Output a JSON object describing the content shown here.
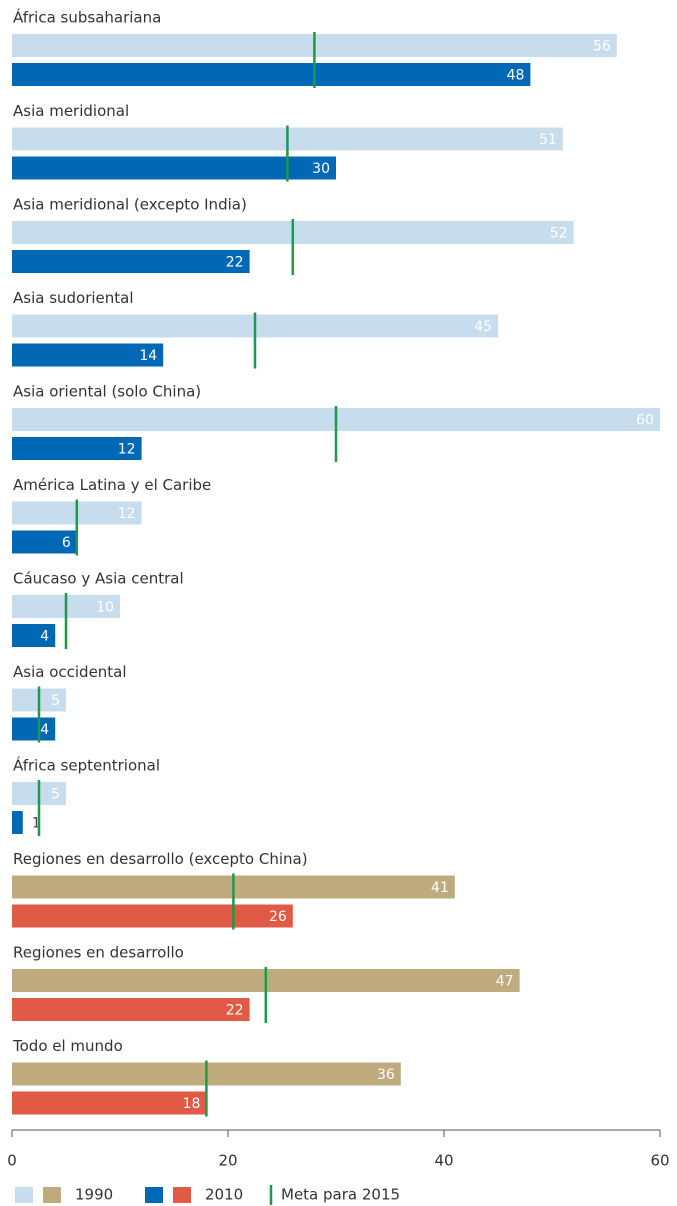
{
  "chart_data": {
    "type": "bar",
    "orientation": "horizontal",
    "categories": [
      "África subsahariana",
      "Asia meridional",
      "Asia meridional (excepto India)",
      "Asia sudoriental",
      "Asia oriental (solo China)",
      "América Latina y el Caribe",
      "Cáucaso y Asia central",
      "Asia occidental",
      "África septentrional",
      "Regiones en desarrollo (excepto China)",
      "Regiones en desarrollo",
      "Todo el mundo"
    ],
    "series": [
      {
        "name": "1990",
        "values": [
          56,
          51,
          52,
          45,
          60,
          12,
          10,
          5,
          5,
          41,
          47,
          36
        ],
        "colors": [
          "#c7dcec",
          "#c7dcec",
          "#c7dcec",
          "#c7dcec",
          "#c7dcec",
          "#c7dcec",
          "#c7dcec",
          "#c7dcec",
          "#c7dcec",
          "#bfab7d",
          "#bfab7d",
          "#bfab7d"
        ]
      },
      {
        "name": "2010",
        "values": [
          48,
          30,
          22,
          14,
          12,
          6,
          4,
          4,
          1,
          26,
          22,
          18
        ],
        "colors": [
          "#0068b4",
          "#0068b4",
          "#0068b4",
          "#0068b4",
          "#0068b4",
          "#0068b4",
          "#0068b4",
          "#0068b4",
          "#0068b4",
          "#e05a45",
          "#e05a45",
          "#e05a45"
        ]
      }
    ],
    "targets": {
      "name": "Meta para 2015",
      "color": "#1a9a4a",
      "values": [
        28,
        25.5,
        26,
        22.5,
        30,
        6,
        5,
        2.5,
        2.5,
        20.5,
        23.5,
        18
      ]
    },
    "xlim": [
      0,
      60
    ],
    "xticks": [
      0,
      20,
      40,
      60
    ]
  }
}
